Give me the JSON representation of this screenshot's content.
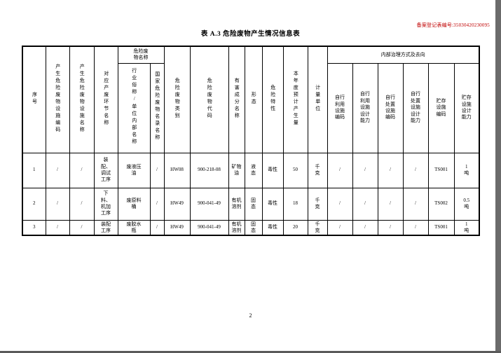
{
  "page": {
    "registration_no": "备案登记表编号:35030420230095",
    "title": "表 A.3 危险废物产生情况信息表",
    "page_number": "2"
  },
  "table": {
    "group_headers": {
      "waste_name": "危险废\n物名称",
      "internal_treatment": "内部治理方式及去向"
    },
    "headers": [
      "序号",
      "产生危险废物设施编码",
      "产生危险废物设施名称",
      "对应产废环节名称",
      "行业俗称/单位内部名称",
      "国家危险废物名录名称",
      "危险废物类别",
      "危险废物代码",
      "有害成分名称",
      "形态",
      "危险特性",
      "本年度预计产生量",
      "计量单位",
      "自行\n利用\n设施\n编码",
      "自行\n利用\n设施\n设计\n能力",
      "自行\n处置\n设施\n编码",
      "自行\n处置\n设施\n设计\n能力",
      "贮存\n设施\n编码",
      "贮存\n设施\n设计\n能力"
    ],
    "rows": [
      [
        "1",
        "/",
        "/",
        "装\n配、\n调试\n工序",
        "废液压\n油",
        "/",
        "HW08",
        "900-218-08",
        "矿物\n油",
        "液\n态",
        "毒性",
        "50",
        "千\n克",
        "/",
        "/",
        "/",
        "/",
        "TS001",
        "1\n吨"
      ],
      [
        "2",
        "/",
        "/",
        "下\n料、\n机加\n工序",
        "废原料\n桶",
        "/",
        "HW49",
        "900-041-49",
        "有机\n溶剂",
        "固\n态",
        "毒性",
        "18",
        "千\n克",
        "/",
        "/",
        "/",
        "/",
        "TS002",
        "0.5\n吨"
      ],
      [
        "3",
        "/",
        "/",
        "装配\n工序",
        "废胶水\n瓶",
        "/",
        "HW49",
        "900-041-49",
        "有机\n溶剂",
        "固\n态",
        "毒性",
        "20",
        "千\n克",
        "/",
        "/",
        "/",
        "/",
        "TS001",
        "1\n吨"
      ]
    ]
  }
}
